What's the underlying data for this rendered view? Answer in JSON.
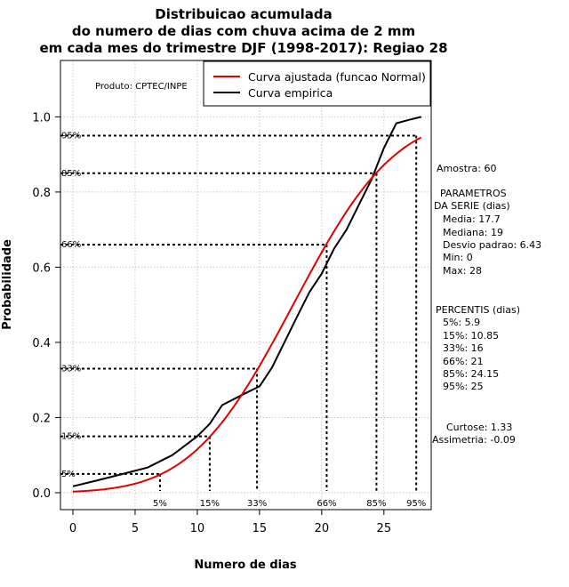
{
  "chart_data": {
    "type": "line",
    "title": [
      "Distribuicao acumulada",
      "do numero de dias com chuva acima de 2 mm",
      "em cada mes do trimestre DJF (1998-2017): Regiao 28"
    ],
    "xlabel": "Numero de dias",
    "ylabel": "Probabilidade",
    "xlim": [
      -1,
      28.8
    ],
    "ylim": [
      -0.045,
      1.15
    ],
    "xticks": [
      0,
      5,
      10,
      15,
      20,
      25
    ],
    "yticks": [
      0.0,
      0.2,
      0.4,
      0.6,
      0.8,
      1.0
    ],
    "xtick_labels": [
      "0",
      "5",
      "10",
      "15",
      "20",
      "25"
    ],
    "ytick_labels": [
      "0.0",
      "0.2",
      "0.4",
      "0.6",
      "0.8",
      "1.0"
    ],
    "grid": true,
    "credit": "Produto: CPTEC/INPE",
    "legend": {
      "position": "top-right",
      "entries": [
        {
          "label": "Curva ajustada (funcao Normal)",
          "color": "#e00000"
        },
        {
          "label": "Curva empirica",
          "color": "#000000"
        }
      ]
    },
    "series": [
      {
        "name": "Curva empirica",
        "color": "#000000",
        "x": [
          0,
          2,
          4,
          6,
          8,
          10,
          11,
          12,
          13,
          14,
          15,
          16,
          17,
          18,
          19,
          20,
          21,
          22,
          23,
          24,
          25,
          26,
          27,
          28
        ],
        "y": [
          0.017,
          0.033,
          0.05,
          0.067,
          0.1,
          0.15,
          0.183,
          0.233,
          0.25,
          0.267,
          0.283,
          0.333,
          0.4,
          0.467,
          0.533,
          0.583,
          0.65,
          0.7,
          0.767,
          0.833,
          0.917,
          0.983,
          0.992,
          1.0
        ]
      },
      {
        "name": "Curva ajustada (funcao Normal)",
        "color": "#e00000",
        "distribution": {
          "family": "normal",
          "mean": 17.7,
          "sd": 6.43
        },
        "x": [
          0,
          2,
          4,
          6,
          8,
          10,
          12,
          14,
          16,
          18,
          20,
          22,
          24,
          26,
          28
        ],
        "y": [
          0.003,
          0.007,
          0.017,
          0.034,
          0.066,
          0.116,
          0.188,
          0.282,
          0.395,
          0.519,
          0.64,
          0.748,
          0.837,
          0.902,
          0.946
        ]
      }
    ],
    "percentile_markers": [
      {
        "label": "5%",
        "prob": 0.05,
        "x": 7.0
      },
      {
        "label": "15%",
        "prob": 0.15,
        "x": 11.0
      },
      {
        "label": "33%",
        "prob": 0.33,
        "x": 14.8
      },
      {
        "label": "66%",
        "prob": 0.66,
        "x": 20.4
      },
      {
        "label": "85%",
        "prob": 0.85,
        "x": 24.4
      },
      {
        "label": "95%",
        "prob": 0.95,
        "x": 27.6
      }
    ],
    "side_panel": {
      "sample": "Amostra: 60",
      "params_header": [
        "PARAMETROS",
        "DA SERIE (dias)"
      ],
      "params": [
        "Media: 17.7",
        "Mediana: 19",
        "Desvio padrao: 6.43",
        "Min: 0",
        "Max: 28"
      ],
      "percentiles_header": "PERCENTIS (dias)",
      "percentiles": [
        "5%: 5.9",
        "15%: 10.85",
        "33%: 16",
        "66%: 21",
        "85%: 24.15",
        "95%: 25"
      ],
      "kurtosis": "Curtose: 1.33",
      "skewness": "Assimetria: -0.09"
    }
  }
}
